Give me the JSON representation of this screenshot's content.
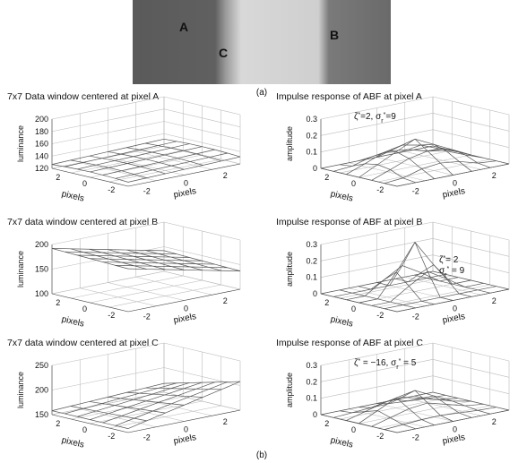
{
  "image": {
    "labels": [
      "A",
      "B",
      "C"
    ],
    "caption": "(a)"
  },
  "panels": [
    {
      "title": "7x7 Data window centered at pixel A",
      "zlabel": "luminance",
      "zlim": [
        120,
        200
      ],
      "zticks": [
        120,
        140,
        160,
        180,
        200
      ],
      "ylabel": "pixels",
      "yticks": [
        2,
        0,
        -2
      ],
      "xlabel": "pixels",
      "xticks": [
        -2,
        0,
        2
      ]
    },
    {
      "title": "Impulse response of ABF at pixel A",
      "zlabel": "amplitude",
      "zlim": [
        0,
        0.3
      ],
      "zticks": [
        0,
        0.1,
        0.2,
        0.3
      ],
      "ylabel": "pixels",
      "yticks": [
        2,
        0,
        -2
      ],
      "xlabel": "pixels",
      "xticks": [
        -2,
        0,
        2
      ],
      "annotation": [
        [
          {
            "text": "ζ"
          },
          {
            "text": "*",
            "style": "sup"
          },
          {
            "text": "=2,  σ"
          },
          {
            "text": "r",
            "style": "sub"
          },
          {
            "text": "*",
            "style": "sup"
          },
          {
            "text": "=9"
          }
        ]
      ]
    },
    {
      "title": "7x7 data window centered at pixel B",
      "zlabel": "luminance",
      "zlim": [
        100,
        200
      ],
      "zticks": [
        100,
        150,
        200
      ],
      "ylabel": "pixels",
      "yticks": [
        2,
        0,
        -2
      ],
      "xlabel": "pixels",
      "xticks": [
        -2,
        0,
        2
      ]
    },
    {
      "title": "Impulse response of ABF at pixel B",
      "zlabel": "amplitude",
      "zlim": [
        0,
        0.3
      ],
      "zticks": [
        0,
        0.1,
        0.2,
        0.3
      ],
      "ylabel": "pixels",
      "yticks": [
        2,
        0,
        -2
      ],
      "xlabel": "pixels",
      "xticks": [
        -2,
        0,
        2
      ],
      "annotation": [
        [
          {
            "text": "ζ"
          },
          {
            "text": "*",
            "style": "sup"
          },
          {
            "text": "= 2"
          }
        ],
        [
          {
            "text": "σ"
          },
          {
            "text": "r",
            "style": "sub"
          },
          {
            "text": "*",
            "style": "sup"
          },
          {
            "text": " = 9"
          }
        ]
      ]
    },
    {
      "title": "7x7 data window centered at pixel C",
      "zlabel": "luminance",
      "zlim": [
        150,
        250
      ],
      "zticks": [
        150,
        200,
        250
      ],
      "ylabel": "pixels",
      "yticks": [
        2,
        0,
        -2
      ],
      "xlabel": "pixels",
      "xticks": [
        -2,
        0,
        2
      ]
    },
    {
      "title": "Impulse response of ABF at pixel C",
      "zlabel": "amplitude",
      "zlim": [
        0,
        0.3
      ],
      "zticks": [
        0,
        0.1,
        0.2,
        0.3
      ],
      "ylabel": "pixels",
      "yticks": [
        2,
        0,
        -2
      ],
      "xlabel": "pixels",
      "xticks": [
        -2,
        0,
        2
      ],
      "annotation": [
        [
          {
            "text": "ζ"
          },
          {
            "text": "*",
            "style": "sup"
          },
          {
            "text": " = −16,  σ"
          },
          {
            "text": "r",
            "style": "sub"
          },
          {
            "text": "*",
            "style": "sup"
          },
          {
            "text": " = 5"
          }
        ]
      ]
    }
  ],
  "caption": "(b)"
}
